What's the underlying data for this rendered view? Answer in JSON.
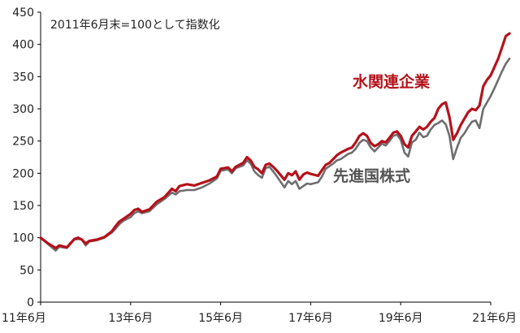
{
  "chart_data": {
    "type": "line",
    "note": "2011年6月末=100として指数化",
    "x_labels": [
      "11年6月",
      "13年6月",
      "15年6月",
      "17年6月",
      "19年6月",
      "21年6月"
    ],
    "y_ticks": [
      "0",
      "50",
      "100",
      "150",
      "200",
      "250",
      "300",
      "350",
      "400",
      "450"
    ],
    "ylim": [
      0,
      450
    ],
    "x_unit": "months since Jun 2011",
    "xlim": [
      0,
      120
    ],
    "grid": false,
    "series": [
      {
        "name": "水関連企業",
        "color": "#b5121b",
        "points": [
          [
            0,
            100
          ],
          [
            2,
            91
          ],
          [
            4,
            84
          ],
          [
            5,
            88
          ],
          [
            7,
            85
          ],
          [
            9,
            98
          ],
          [
            10,
            100
          ],
          [
            11,
            97
          ],
          [
            12,
            91
          ],
          [
            13,
            95
          ],
          [
            15,
            97
          ],
          [
            17,
            101
          ],
          [
            19,
            110
          ],
          [
            20,
            118
          ],
          [
            21,
            125
          ],
          [
            22,
            129
          ],
          [
            24,
            137
          ],
          [
            25,
            143
          ],
          [
            26,
            145
          ],
          [
            27,
            140
          ],
          [
            29,
            144
          ],
          [
            31,
            156
          ],
          [
            33,
            163
          ],
          [
            35,
            176
          ],
          [
            36,
            172
          ],
          [
            37,
            180
          ],
          [
            39,
            183
          ],
          [
            41,
            181
          ],
          [
            43,
            185
          ],
          [
            45,
            189
          ],
          [
            47,
            195
          ],
          [
            48,
            207
          ],
          [
            50,
            209
          ],
          [
            51,
            203
          ],
          [
            52,
            210
          ],
          [
            53,
            213
          ],
          [
            54,
            216
          ],
          [
            55,
            225
          ],
          [
            56,
            220
          ],
          [
            57,
            210
          ],
          [
            58,
            206
          ],
          [
            59,
            200
          ],
          [
            60,
            213
          ],
          [
            61,
            215
          ],
          [
            62,
            210
          ],
          [
            63,
            204
          ],
          [
            65,
            190
          ],
          [
            66,
            200
          ],
          [
            67,
            197
          ],
          [
            68,
            203
          ],
          [
            69,
            190
          ],
          [
            70,
            198
          ],
          [
            71,
            201
          ],
          [
            72,
            199
          ],
          [
            74,
            196
          ],
          [
            75,
            205
          ],
          [
            76,
            213
          ],
          [
            77,
            216
          ],
          [
            78,
            222
          ],
          [
            79,
            228
          ],
          [
            80,
            232
          ],
          [
            81,
            235
          ],
          [
            82,
            238
          ],
          [
            83,
            240
          ],
          [
            84,
            248
          ],
          [
            85,
            258
          ],
          [
            86,
            262
          ],
          [
            87,
            258
          ],
          [
            88,
            247
          ],
          [
            89,
            242
          ],
          [
            90,
            245
          ],
          [
            91,
            250
          ],
          [
            92,
            248
          ],
          [
            93,
            255
          ],
          [
            94,
            263
          ],
          [
            95,
            265
          ],
          [
            96,
            258
          ],
          [
            97,
            245
          ],
          [
            98,
            240
          ],
          [
            99,
            258
          ],
          [
            100,
            265
          ],
          [
            101,
            272
          ],
          [
            102,
            268
          ],
          [
            103,
            272
          ],
          [
            104,
            280
          ],
          [
            105,
            286
          ],
          [
            106,
            300
          ],
          [
            107,
            307
          ],
          [
            108,
            310
          ],
          [
            109,
            287
          ],
          [
            110,
            252
          ],
          [
            111,
            262
          ],
          [
            112,
            275
          ],
          [
            113,
            285
          ],
          [
            114,
            295
          ],
          [
            115,
            300
          ],
          [
            116,
            298
          ],
          [
            117,
            305
          ],
          [
            118,
            335
          ],
          [
            119,
            345
          ],
          [
            120,
            352
          ],
          [
            121,
            365
          ],
          [
            122,
            378
          ],
          [
            123,
            395
          ],
          [
            124,
            413
          ],
          [
            125,
            417
          ]
        ]
      },
      {
        "name": "先進国株式",
        "color": "#6e6e6e",
        "points": [
          [
            0,
            100
          ],
          [
            2,
            90
          ],
          [
            4,
            80
          ],
          [
            5,
            86
          ],
          [
            7,
            84
          ],
          [
            9,
            97
          ],
          [
            10,
            98
          ],
          [
            11,
            97
          ],
          [
            12,
            88
          ],
          [
            13,
            94
          ],
          [
            15,
            96
          ],
          [
            17,
            100
          ],
          [
            19,
            108
          ],
          [
            20,
            114
          ],
          [
            21,
            121
          ],
          [
            22,
            126
          ],
          [
            24,
            132
          ],
          [
            25,
            138
          ],
          [
            26,
            141
          ],
          [
            27,
            138
          ],
          [
            29,
            141
          ],
          [
            31,
            152
          ],
          [
            33,
            160
          ],
          [
            35,
            170
          ],
          [
            36,
            167
          ],
          [
            37,
            172
          ],
          [
            39,
            174
          ],
          [
            41,
            174
          ],
          [
            43,
            178
          ],
          [
            45,
            184
          ],
          [
            47,
            192
          ],
          [
            48,
            204
          ],
          [
            50,
            206
          ],
          [
            51,
            200
          ],
          [
            52,
            208
          ],
          [
            53,
            210
          ],
          [
            54,
            212
          ],
          [
            55,
            220
          ],
          [
            56,
            215
          ],
          [
            57,
            203
          ],
          [
            58,
            197
          ],
          [
            59,
            193
          ],
          [
            60,
            208
          ],
          [
            61,
            210
          ],
          [
            62,
            203
          ],
          [
            63,
            195
          ],
          [
            65,
            178
          ],
          [
            66,
            188
          ],
          [
            67,
            183
          ],
          [
            68,
            188
          ],
          [
            69,
            176
          ],
          [
            70,
            180
          ],
          [
            71,
            184
          ],
          [
            72,
            183
          ],
          [
            74,
            186
          ],
          [
            75,
            195
          ],
          [
            76,
            207
          ],
          [
            77,
            211
          ],
          [
            78,
            215
          ],
          [
            79,
            220
          ],
          [
            80,
            222
          ],
          [
            81,
            226
          ],
          [
            82,
            230
          ],
          [
            83,
            232
          ],
          [
            84,
            238
          ],
          [
            85,
            247
          ],
          [
            86,
            252
          ],
          [
            87,
            250
          ],
          [
            88,
            240
          ],
          [
            89,
            234
          ],
          [
            90,
            240
          ],
          [
            91,
            246
          ],
          [
            92,
            243
          ],
          [
            93,
            250
          ],
          [
            94,
            258
          ],
          [
            95,
            260
          ],
          [
            96,
            252
          ],
          [
            97,
            232
          ],
          [
            98,
            226
          ],
          [
            99,
            248
          ],
          [
            100,
            252
          ],
          [
            101,
            263
          ],
          [
            102,
            256
          ],
          [
            103,
            258
          ],
          [
            104,
            268
          ],
          [
            105,
            275
          ],
          [
            106,
            278
          ],
          [
            107,
            282
          ],
          [
            108,
            276
          ],
          [
            109,
            258
          ],
          [
            110,
            222
          ],
          [
            111,
            240
          ],
          [
            112,
            255
          ],
          [
            113,
            262
          ],
          [
            114,
            272
          ],
          [
            115,
            280
          ],
          [
            116,
            282
          ],
          [
            117,
            270
          ],
          [
            118,
            300
          ],
          [
            119,
            310
          ],
          [
            120,
            320
          ],
          [
            121,
            332
          ],
          [
            122,
            345
          ],
          [
            123,
            358
          ],
          [
            124,
            370
          ],
          [
            125,
            378
          ]
        ]
      }
    ]
  }
}
